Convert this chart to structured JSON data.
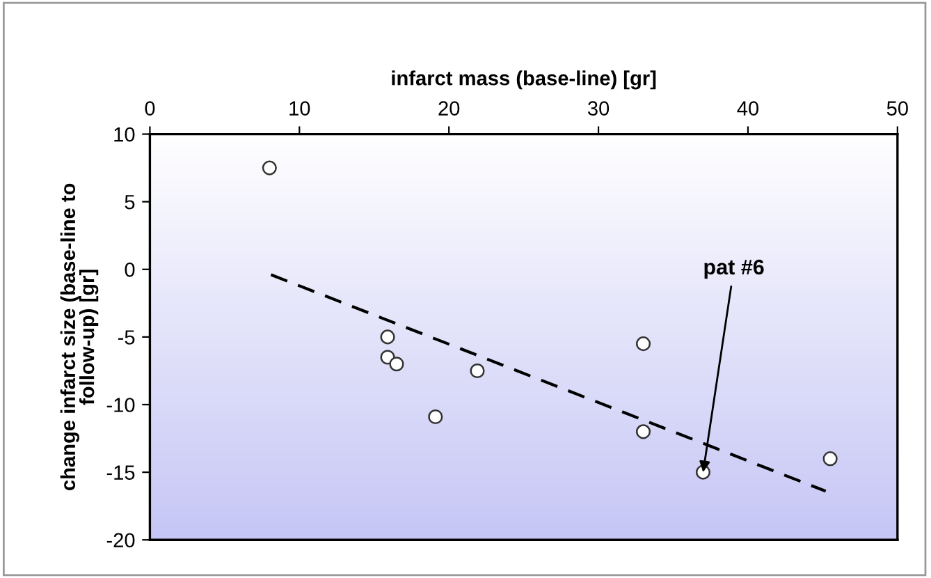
{
  "chart_data": {
    "type": "scatter",
    "xlabel": "infarct mass (base-line) [gr]",
    "ylabel": "change infarct size (base-line to\nfollow-up) [gr]",
    "xlim": [
      0,
      50
    ],
    "xticks": [
      0,
      10,
      20,
      30,
      40,
      50
    ],
    "ylim": [
      -20,
      10
    ],
    "yticks": [
      -20,
      -15,
      -10,
      -5,
      0,
      5,
      10
    ],
    "marker": "circle",
    "grid": false,
    "legend": false,
    "series": [
      {
        "color": "#ffffff",
        "x": [
          8,
          15.9,
          15.9,
          16.5,
          21.9,
          19.1,
          33,
          33,
          37,
          45.5
        ],
        "values": [
          7.5,
          -5,
          -6.5,
          -7,
          -7.5,
          -10.9,
          -5.5,
          -12,
          -15,
          -14
        ]
      },
      {
        "type": "line",
        "color": "#000000",
        "line_style": "dashed",
        "marker": "none",
        "x": [
          8.1,
          45.2
        ],
        "values": [
          -0.4,
          -16.4
        ]
      }
    ],
    "annotations": [
      {
        "text": "pat #6",
        "x": 37,
        "y": -15
      }
    ]
  }
}
